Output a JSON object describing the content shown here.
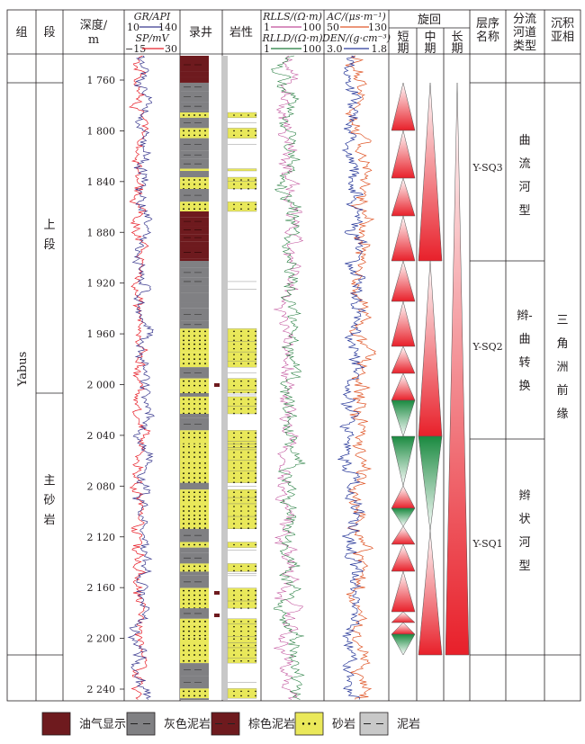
{
  "header": {
    "group": "组",
    "member": "段",
    "depth": [
      "深度/",
      "m"
    ],
    "gr_label": "GR/API",
    "gr_range": [
      "10",
      "140"
    ],
    "sp_label": "SP/mV",
    "sp_range": [
      "−15",
      "30"
    ],
    "mudlog": "录井",
    "lithology": "岩性",
    "rlls_label": "RLLS/(Ω·m)",
    "rlls_range": [
      "1",
      "100"
    ],
    "rlld_label": "RLLD/(Ω·m)",
    "rlld_range": [
      "1",
      "100"
    ],
    "ac_label": "AC/(μs·m⁻¹)",
    "ac_range": [
      "50",
      "130"
    ],
    "den_label": "DEN/(g·cm⁻³)",
    "den_range": [
      "3.0",
      "1.8"
    ],
    "cycle": "旋回",
    "cycle_short": [
      "短",
      "期"
    ],
    "cycle_mid": [
      "中",
      "期"
    ],
    "cycle_long": [
      "长",
      "期"
    ],
    "sequence": [
      "层序",
      "名称"
    ],
    "channel_type": [
      "分流",
      "河道",
      "类型"
    ],
    "subfacies": [
      "沉积",
      "亚相"
    ]
  },
  "depth_ticks": [
    "1 760",
    "1 800",
    "1 840",
    "1 880",
    "1 920",
    "1 960",
    "2 000",
    "2 040",
    "2 080",
    "2 120",
    "2 160",
    "2 200",
    "2 240"
  ],
  "group_name": "Yabus",
  "members": [
    [
      "上",
      "段"
    ],
    [
      "主",
      "砂",
      "岩"
    ]
  ],
  "sequences": [
    "Y-SQ3",
    "Y-SQ2",
    "Y-SQ1"
  ],
  "channel_types": [
    [
      "曲",
      "流",
      "河",
      "型"
    ],
    [
      "辫-",
      "曲",
      "转",
      "换"
    ],
    [
      "辫",
      "状",
      "河",
      "型"
    ]
  ],
  "subfacies_value": [
    "三",
    "角",
    "洲",
    "前",
    "缘"
  ],
  "colors": {
    "gr": "#3b3a8f",
    "sp": "#e8202a",
    "rlls": "#c04f9a",
    "rlld": "#1f7a3a",
    "ac": "#e0582a",
    "den": "#2a3a9a",
    "oil": "#6e1a1e",
    "gray_mud": "#808083",
    "brown_mud": "#6e1a1e",
    "sand": "#e9e85a",
    "mud": "#c8c8c8",
    "red": "#e8202a",
    "green": "#1a8a40"
  },
  "legend": [
    {
      "label": "油气显示",
      "icon": "oil-show"
    },
    {
      "label": "灰色泥岩",
      "icon": "gray-mudstone"
    },
    {
      "label": "棕色泥岩",
      "icon": "brown-mudstone"
    },
    {
      "label": "砂岩",
      "icon": "sandstone"
    },
    {
      "label": "泥岩",
      "icon": "mudstone"
    }
  ]
}
